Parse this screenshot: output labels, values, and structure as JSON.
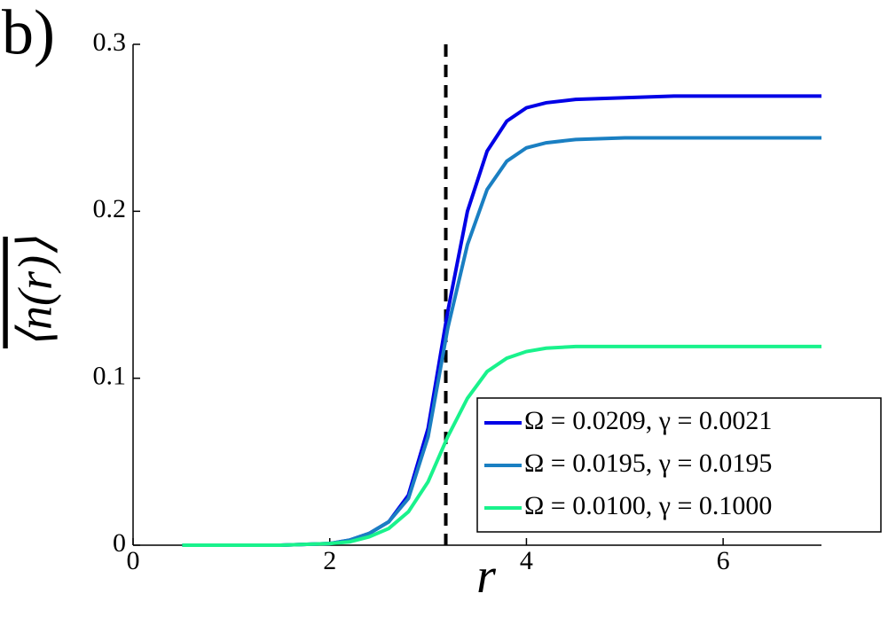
{
  "chart_data": {
    "type": "line",
    "panel_label": "b)",
    "xlabel": "r",
    "ylabel": "⟨n(r)⟩",
    "x": [
      0.5,
      1,
      1.5,
      2,
      2.2,
      2.4,
      2.6,
      2.8,
      3.0,
      3.2,
      3.4,
      3.6,
      3.8,
      4.0,
      4.2,
      4.5,
      5,
      5.5,
      6,
      7
    ],
    "series": [
      {
        "name": "Ω = 0.0209, γ = 0.0021",
        "color": "#0000e6",
        "values": [
          0,
          0,
          0,
          0.001,
          0.003,
          0.007,
          0.014,
          0.03,
          0.07,
          0.14,
          0.2,
          0.236,
          0.254,
          0.262,
          0.265,
          0.267,
          0.268,
          0.269,
          0.269,
          0.269
        ]
      },
      {
        "name": "Ω = 0.0195, γ = 0.0195",
        "color": "#1a7fc2",
        "values": [
          0,
          0,
          0,
          0.001,
          0.003,
          0.007,
          0.014,
          0.028,
          0.065,
          0.13,
          0.18,
          0.213,
          0.23,
          0.238,
          0.241,
          0.243,
          0.244,
          0.244,
          0.244,
          0.244
        ]
      },
      {
        "name": "Ω = 0.0100, γ = 0.1000",
        "color": "#19f28c",
        "values": [
          0,
          0,
          0,
          0.001,
          0.002,
          0.005,
          0.01,
          0.02,
          0.038,
          0.065,
          0.088,
          0.104,
          0.112,
          0.116,
          0.118,
          0.119,
          0.119,
          0.119,
          0.119,
          0.119
        ]
      }
    ],
    "vline": 3.18,
    "xlim": [
      0,
      7
    ],
    "xticks": [
      0,
      2,
      4,
      6
    ],
    "ylim": [
      0,
      0.3
    ],
    "yticks": [
      0,
      0.1,
      0.2,
      0.3
    ],
    "legend": "lower right"
  }
}
